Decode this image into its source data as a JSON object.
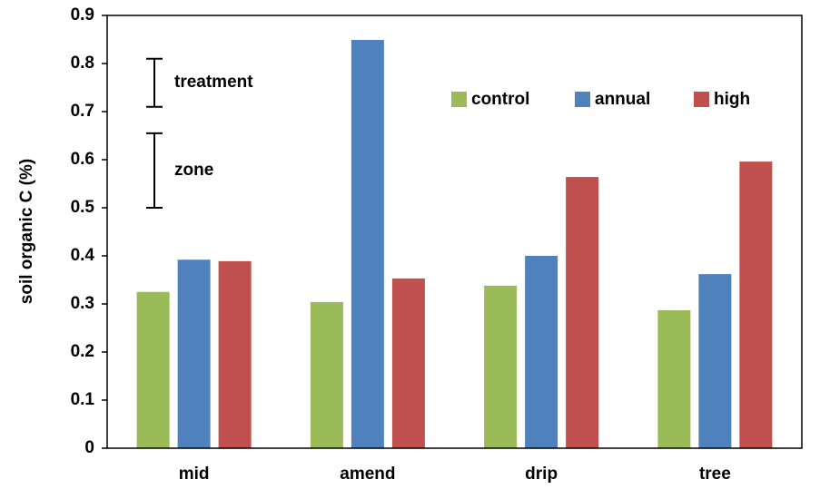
{
  "chart_data": {
    "type": "bar",
    "y_label": "soil organic C (%)",
    "categories": [
      "mid",
      "amend",
      "drip",
      "tree"
    ],
    "series": [
      {
        "name": "control",
        "color": "#9bbb59",
        "values": [
          0.325,
          0.304,
          0.338,
          0.287
        ]
      },
      {
        "name": "annual",
        "color": "#4f81bd",
        "values": [
          0.392,
          0.849,
          0.4,
          0.362
        ]
      },
      {
        "name": "high",
        "color": "#c0504d",
        "values": [
          0.389,
          0.353,
          0.564,
          0.596
        ]
      }
    ],
    "ylim": [
      0,
      0.9
    ],
    "yticks": [
      0,
      0.1,
      0.2,
      0.3,
      0.4,
      0.5,
      0.6,
      0.7,
      0.8,
      0.9
    ],
    "grid": false,
    "legend": "upper right",
    "annotations": [
      {
        "text": "treatment",
        "low": 0.71,
        "high": 0.81
      },
      {
        "text": "zone",
        "low": 0.5,
        "high": 0.655
      }
    ]
  }
}
